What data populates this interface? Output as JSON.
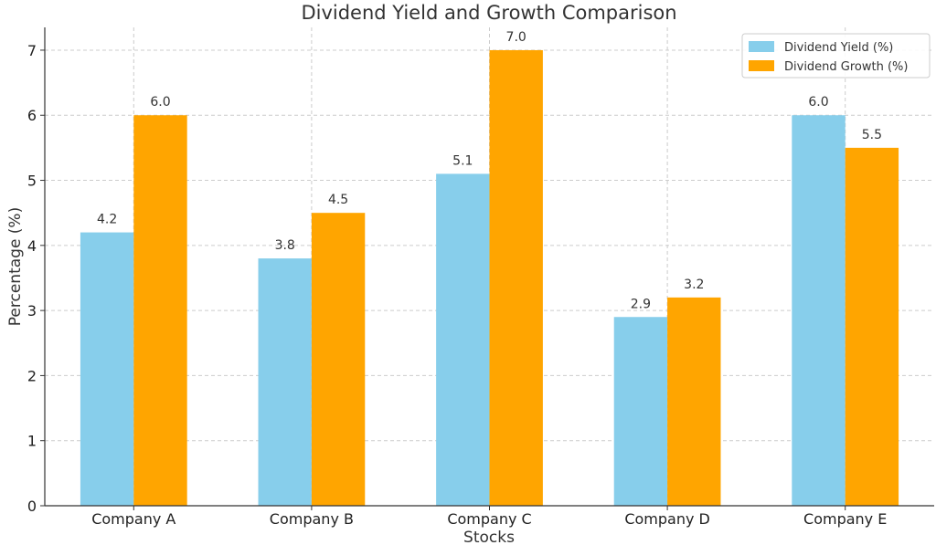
{
  "chart_data": {
    "type": "bar",
    "title": "Dividend Yield and Growth Comparison",
    "xlabel": "Stocks",
    "ylabel": "Percentage (%)",
    "categories": [
      "Company A",
      "Company B",
      "Company C",
      "Company D",
      "Company E"
    ],
    "series": [
      {
        "name": "Dividend Yield (%)",
        "color": "#87CEEB",
        "values": [
          4.2,
          3.8,
          5.1,
          2.9,
          6.0
        ],
        "labels": [
          "4.2",
          "3.8",
          "5.1",
          "2.9",
          "6.0"
        ]
      },
      {
        "name": "Dividend Growth (%)",
        "color": "#FFA500",
        "values": [
          6.0,
          4.5,
          7.0,
          3.2,
          5.5
        ],
        "labels": [
          "6.0",
          "4.5",
          "7.0",
          "3.2",
          "5.5"
        ]
      }
    ],
    "ylim": [
      0,
      7.35
    ],
    "yticks": [
      0,
      1,
      2,
      3,
      4,
      5,
      6,
      7
    ],
    "ytick_labels": [
      "0",
      "1",
      "2",
      "3",
      "4",
      "5",
      "6",
      "7"
    ],
    "grid": true,
    "legend_position": "top-right"
  }
}
